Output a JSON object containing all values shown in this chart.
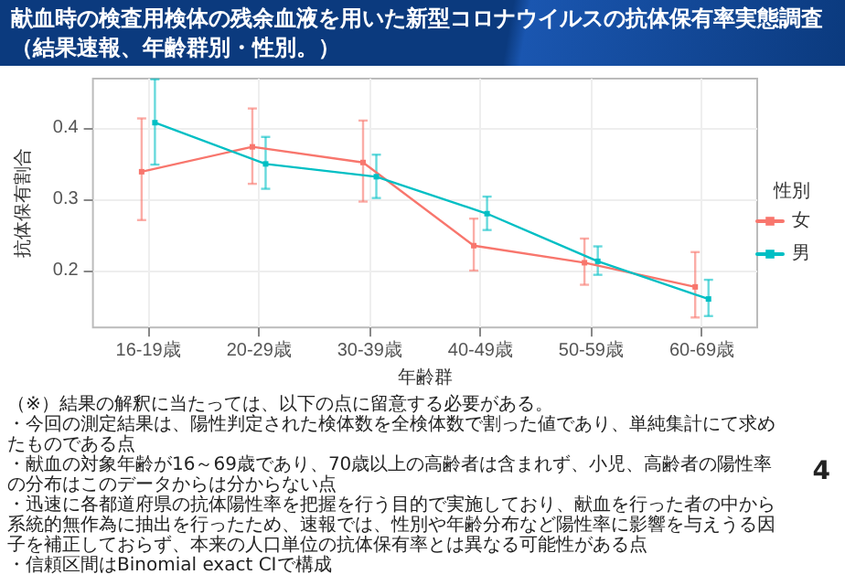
{
  "chart_data": {
    "type": "line",
    "title": "献血時の検査用検体の残余血液を用いた新型コロナウイルスの抗体保有率実態調査（結果速報、年齢群別・性別。）",
    "xlabel": "年齢群",
    "ylabel": "抗体保有割合",
    "legend_title": "性別",
    "categories": [
      "16-19歳",
      "20-29歳",
      "30-39歳",
      "40-49歳",
      "50-59歳",
      "60-69歳"
    ],
    "series": [
      {
        "name": "女",
        "color": "#f8766d",
        "values": [
          0.339,
          0.374,
          0.352,
          0.235,
          0.211,
          0.177
        ],
        "errors": [
          [
            0.271,
            0.414
          ],
          [
            0.322,
            0.428
          ],
          [
            0.297,
            0.411
          ],
          [
            0.2,
            0.273
          ],
          [
            0.18,
            0.245
          ],
          [
            0.134,
            0.226
          ]
        ]
      },
      {
        "name": "男",
        "color": "#00bfc4",
        "values": [
          0.408,
          0.35,
          0.332,
          0.28,
          0.213,
          0.16
        ],
        "errors": [
          [
            0.349,
            0.469
          ],
          [
            0.315,
            0.388
          ],
          [
            0.302,
            0.363
          ],
          [
            0.257,
            0.304
          ],
          [
            0.194,
            0.234
          ],
          [
            0.136,
            0.187
          ]
        ]
      }
    ],
    "ylim": [
      0.12,
      0.47
    ],
    "yticks": [
      0.2,
      0.3,
      0.4
    ],
    "grid": true,
    "legend": "right",
    "marker": "square",
    "line_style": "solid",
    "annotations": [
      "（※）結果の解釈に当たっては、以下の点に留意する必要がある。",
      "・今回の測定結果は、陽性判定された検体数を全検体数で割った値であり、単純集計にて求めたものである点",
      "・献血の対象年齢が16～69歳であり、70歳以上の高齢者は含まれず、小児、高齢者の陽性率の分布はこのデータからは分からない点",
      "・迅速に各都道府県の抗体陽性率を把握を行う目的で実施しており、献血を行った者の中から系統的無作為に抽出を行ったため、速報では、性別や年齢分布など陽性率に影響を与えうる因子を補正しておらず、本来の人口単位の抗体保有率とは異なる可能性がある点",
      "・信頼区間はBinomial exact CIで構成",
      "4"
    ]
  }
}
